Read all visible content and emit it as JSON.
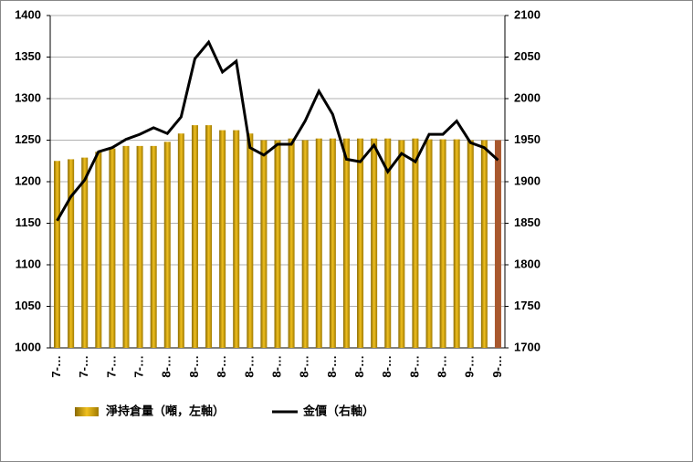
{
  "chart_data": {
    "type": "bar-line",
    "categories": [
      "7-…",
      null,
      "7-…",
      null,
      "7-…",
      null,
      "7-…",
      null,
      "8-…",
      null,
      "8-…",
      null,
      "8-…",
      null,
      "8-…",
      null,
      "8-…",
      null,
      "8-…",
      null,
      "8-…",
      null,
      "8-…",
      null,
      "8-…",
      null,
      "8-…",
      null,
      "8-…",
      null,
      "9-…",
      null,
      "9-…"
    ],
    "series": [
      {
        "name": "淨持倉量（噸，左軸）",
        "kind": "bar",
        "color": "#d4a514",
        "colors": [
          "#d4a514",
          "#d4a514",
          "#d4a514",
          "#d4a514",
          "#d4a514",
          "#d4a514",
          "#d4a514",
          "#d4a514",
          "#d4a514",
          "#d4a514",
          "#d4a514",
          "#d4a514",
          "#d4a514",
          "#d4a514",
          "#d4a514",
          "#d4a514",
          "#d4a514",
          "#d4a514",
          "#d4a514",
          "#d4a514",
          "#d4a514",
          "#d4a514",
          "#d4a514",
          "#d4a514",
          "#d4a514",
          "#d4a514",
          "#d4a514",
          "#d4a514",
          "#d4a514",
          "#d4a514",
          "#d4a514",
          "#d4a514",
          "#a8582e"
        ],
        "values": [
          1225,
          1227,
          1229,
          1236,
          1240,
          1243,
          1243,
          1243,
          1248,
          1258,
          1268,
          1268,
          1262,
          1262,
          1258,
          1250,
          1250,
          1252,
          1250,
          1252,
          1252,
          1252,
          1252,
          1252,
          1252,
          1250,
          1252,
          1251,
          1251,
          1251,
          1250,
          1250,
          1250
        ]
      },
      {
        "name": "金價（右軸）",
        "kind": "line",
        "axis": "y2",
        "color": "#000000",
        "values": [
          1853,
          1882,
          1902,
          1936,
          1941,
          1951,
          1957,
          1965,
          1958,
          1978,
          2048,
          2068,
          2032,
          2045,
          1941,
          1932,
          1945,
          1945,
          1973,
          2009,
          1981,
          1927,
          1924,
          1944,
          1912,
          1934,
          1924,
          1957,
          1957,
          1973,
          1947,
          1941,
          1926
        ]
      }
    ],
    "ylim": [
      1000,
      1400
    ],
    "yticks": [
      1000,
      1050,
      1100,
      1150,
      1200,
      1250,
      1300,
      1350,
      1400
    ],
    "y2lim": [
      1700,
      2100
    ],
    "y2ticks": [
      1700,
      1750,
      1800,
      1850,
      1900,
      1950,
      2000,
      2050,
      2100
    ],
    "grid": true,
    "legend": "bottom"
  }
}
